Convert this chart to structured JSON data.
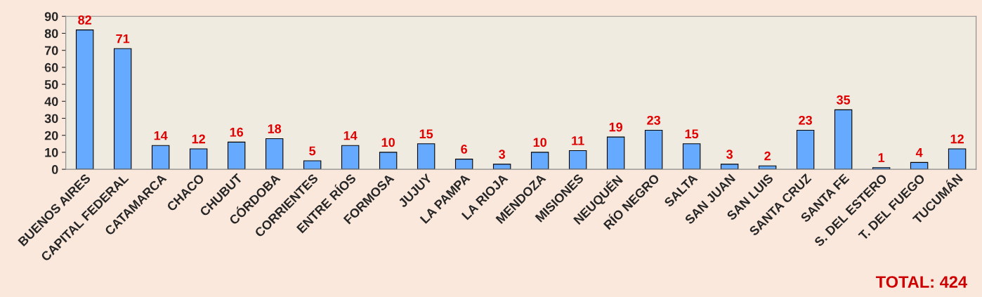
{
  "chart_data": {
    "type": "bar",
    "categories": [
      "BUENOS AIRES",
      "CAPITAL FEDERAL",
      "CATAMARCA",
      "CHACO",
      "CHUBUT",
      "CÓRDOBA",
      "CORRIENTES",
      "ENTRE RÍOS",
      "FORMOSA",
      "JUJUY",
      "LA PAMPA",
      "LA RIOJA",
      "MENDOZA",
      "MISIONES",
      "NEUQUÉN",
      "RÍO NEGRO",
      "SALTA",
      "SAN JUAN",
      "SAN LUIS",
      "SANTA CRUZ",
      "SANTA FE",
      "S. DEL ESTERO",
      "T. DEL FUEGO",
      "TUCUMÁN"
    ],
    "values": [
      82,
      71,
      14,
      12,
      16,
      18,
      5,
      14,
      10,
      15,
      6,
      3,
      10,
      11,
      19,
      23,
      15,
      3,
      2,
      23,
      35,
      1,
      4,
      12
    ],
    "color": "#66aaff",
    "ylim": [
      0,
      90
    ],
    "yticks": [
      0,
      10,
      20,
      30,
      40,
      50,
      60,
      70,
      80,
      90
    ],
    "grid": false,
    "legend": false,
    "data_labels": true,
    "annotations": [
      "TOTAL: 424"
    ]
  }
}
